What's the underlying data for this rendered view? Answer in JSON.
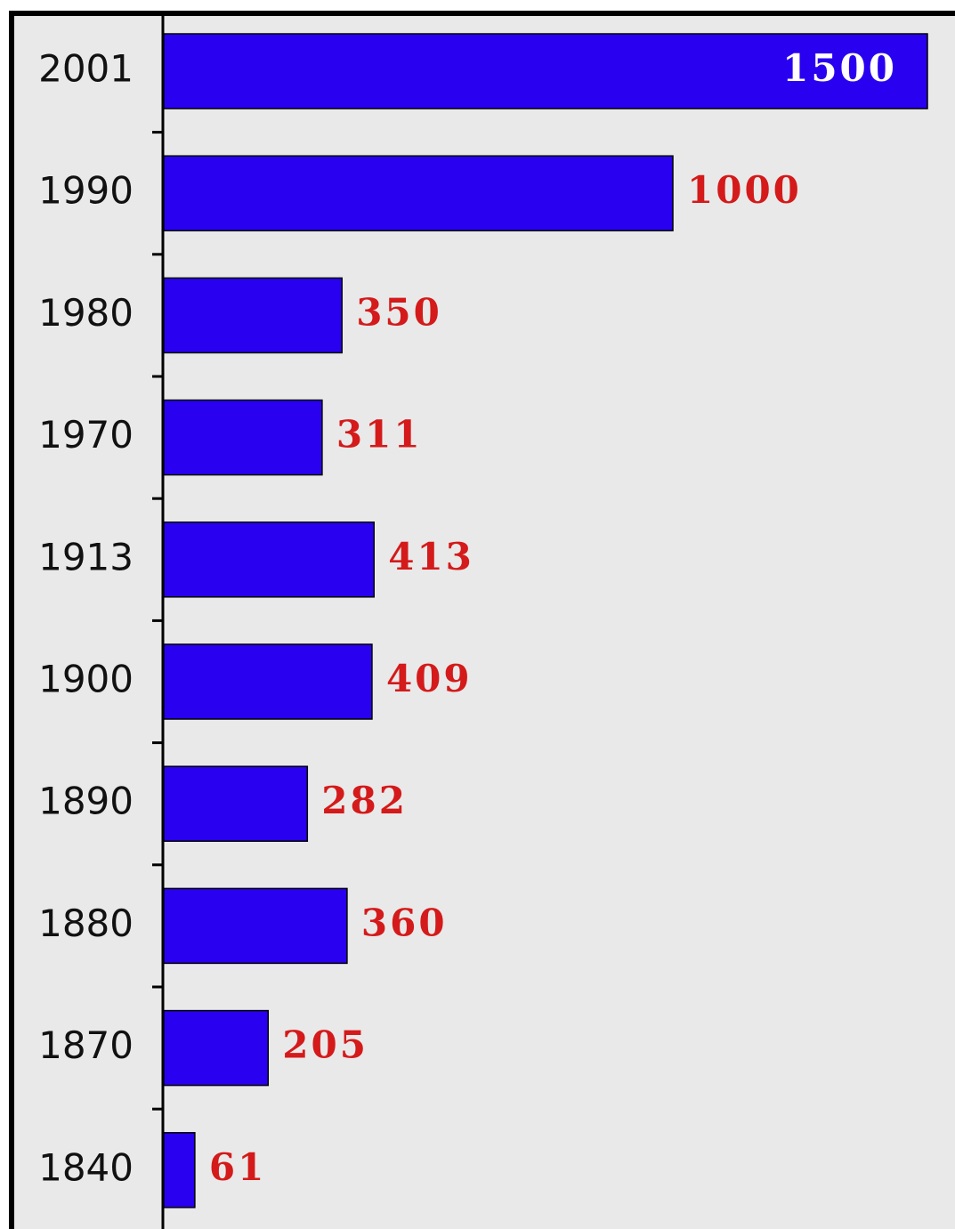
{
  "chart_data": {
    "type": "hbar",
    "categories": [
      "2001",
      "1990",
      "1980",
      "1970",
      "1913",
      "1900",
      "1890",
      "1880",
      "1870",
      "1840"
    ],
    "values": [
      1500,
      1000,
      350,
      311,
      413,
      409,
      282,
      360,
      205,
      61
    ],
    "color": "#2a00f0",
    "label_color": "#d41a1a",
    "background": "#e9e9e9"
  }
}
